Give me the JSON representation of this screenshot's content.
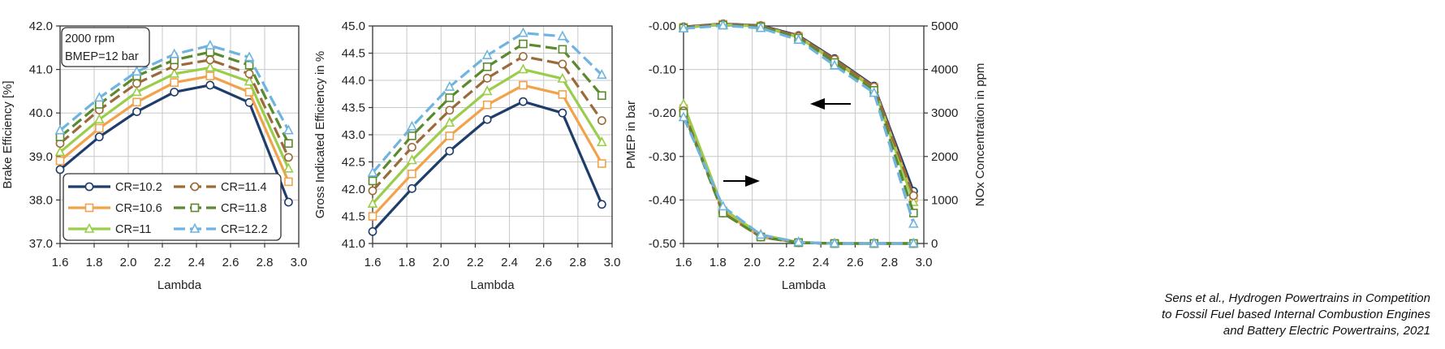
{
  "citation": {
    "line1": "Sens et al., Hydrogen Powertrains in Competition",
    "line2": "to Fossil Fuel based Internal Combustion Engines",
    "line3": "and Battery Electric Powertrains, 2021"
  },
  "colors": {
    "CR=10.2": "#1f3d6b",
    "CR=10.6": "#f2a24a",
    "CR=11": "#9acd4a",
    "CR=11.4": "#9c6a3a",
    "CR=11.8": "#5a8a2c",
    "CR=12.2": "#6fb4df"
  },
  "chart_data": [
    {
      "type": "line",
      "title": "",
      "xlabel": "Lambda",
      "ylabel": "Brake Efficiency [%]",
      "xlim": [
        1.6,
        3.0
      ],
      "ylim": [
        37.0,
        42.0
      ],
      "xticks": [
        "1.6",
        "1.8",
        "2.0",
        "2.2",
        "2.4",
        "2.6",
        "2.8",
        "3.0"
      ],
      "yticks": [
        "37.0",
        "38.0",
        "39.0",
        "40.0",
        "41.0",
        "42.0"
      ],
      "grid": true,
      "annotation_box": [
        "2000 rpm",
        "BMEP=12 bar"
      ],
      "legend_position": "bottom",
      "x": [
        1.6,
        1.83,
        2.05,
        2.27,
        2.48,
        2.71,
        2.94
      ],
      "series": [
        {
          "name": "CR=10.2",
          "values": [
            38.7,
            39.45,
            40.03,
            40.48,
            40.64,
            40.24,
            37.95
          ]
        },
        {
          "name": "CR=10.6",
          "values": [
            38.9,
            39.65,
            40.25,
            40.7,
            40.85,
            40.48,
            38.42
          ]
        },
        {
          "name": "CR=11",
          "values": [
            39.1,
            39.85,
            40.48,
            40.9,
            41.04,
            40.72,
            38.72
          ]
        },
        {
          "name": "CR=11.4",
          "values": [
            39.3,
            40.07,
            40.68,
            41.08,
            41.22,
            40.9,
            38.98
          ]
        },
        {
          "name": "CR=11.8",
          "values": [
            39.45,
            40.2,
            40.85,
            41.22,
            41.4,
            41.1,
            39.3
          ]
        },
        {
          "name": "CR=12.2",
          "values": [
            39.6,
            40.35,
            40.95,
            41.35,
            41.55,
            41.28,
            39.6
          ]
        }
      ]
    },
    {
      "type": "line",
      "title": "",
      "xlabel": "Lambda",
      "ylabel": "Gross Indicated Efficiency in %",
      "xlim": [
        1.6,
        3.0
      ],
      "ylim": [
        41.0,
        45.0
      ],
      "xticks": [
        "1.6",
        "1.8",
        "2.0",
        "2.2",
        "2.4",
        "2.6",
        "2.8",
        "3.0"
      ],
      "yticks": [
        "41.0",
        "41.5",
        "42.0",
        "42.5",
        "43.0",
        "43.5",
        "44.0",
        "44.5",
        "45.0"
      ],
      "grid": true,
      "x": [
        1.6,
        1.83,
        2.05,
        2.27,
        2.48,
        2.71,
        2.94
      ],
      "series": [
        {
          "name": "CR=10.2",
          "values": [
            41.22,
            42.01,
            42.7,
            43.28,
            43.61,
            43.4,
            41.72
          ]
        },
        {
          "name": "CR=10.6",
          "values": [
            41.5,
            42.28,
            42.98,
            43.55,
            43.91,
            43.74,
            42.47
          ]
        },
        {
          "name": "CR=11",
          "values": [
            41.73,
            42.53,
            43.22,
            43.8,
            44.2,
            44.03,
            42.86
          ]
        },
        {
          "name": "CR=11.4",
          "values": [
            41.97,
            42.77,
            43.45,
            44.04,
            44.44,
            44.3,
            43.26
          ]
        },
        {
          "name": "CR=11.8",
          "values": [
            42.15,
            42.98,
            43.68,
            44.25,
            44.67,
            44.57,
            43.72
          ]
        },
        {
          "name": "CR=12.2",
          "values": [
            42.3,
            43.15,
            43.88,
            44.46,
            44.87,
            44.81,
            44.1
          ]
        }
      ]
    },
    {
      "type": "line",
      "title": "",
      "xlabel": "Lambda",
      "ylabel": "PMEP in bar",
      "ylabel_right": "NOx Concentration in ppm",
      "xlim": [
        1.6,
        3.0
      ],
      "ylim": [
        -0.5,
        0.0
      ],
      "ylim_right": [
        0,
        5000
      ],
      "xticks": [
        "1.6",
        "1.8",
        "2.0",
        "2.2",
        "2.4",
        "2.6",
        "2.8",
        "3.0"
      ],
      "yticks": [
        "-0.50",
        "-0.40",
        "-0.30",
        "-0.20",
        "-0.10",
        "-0.00"
      ],
      "yticks_right": [
        "0",
        "1000",
        "2000",
        "3000",
        "4000",
        "5000"
      ],
      "grid": true,
      "arrows": [
        {
          "points_to": "left axis",
          "direction": "left"
        },
        {
          "points_to": "right axis",
          "direction": "right"
        }
      ],
      "x": [
        1.6,
        1.83,
        2.05,
        2.27,
        2.48,
        2.71,
        2.94
      ],
      "pmep_series": [
        {
          "name": "CR=10.2",
          "values": [
            -0.195,
            -0.425,
            -0.485,
            -0.498,
            -0.5,
            -0.5,
            -0.5
          ]
        },
        {
          "name": "CR=10.6",
          "values": [
            -0.19,
            -0.425,
            -0.485,
            -0.498,
            -0.5,
            -0.5,
            -0.5
          ]
        },
        {
          "name": "CR=11",
          "values": [
            -0.18,
            -0.42,
            -0.48,
            -0.497,
            -0.5,
            -0.5,
            -0.5
          ]
        },
        {
          "name": "CR=11.4",
          "values": [
            -0.195,
            -0.43,
            -0.485,
            -0.498,
            -0.5,
            -0.5,
            -0.5
          ]
        },
        {
          "name": "CR=11.8",
          "values": [
            -0.2,
            -0.43,
            -0.485,
            -0.498,
            -0.5,
            -0.5,
            -0.5
          ]
        },
        {
          "name": "CR=12.2",
          "values": [
            -0.21,
            -0.415,
            -0.48,
            -0.497,
            -0.5,
            -0.5,
            -0.5
          ]
        }
      ],
      "nox_series": [
        {
          "name": "CR=10.2",
          "values": [
            4980,
            5050,
            5010,
            4780,
            4250,
            3620,
            1200
          ]
        },
        {
          "name": "CR=10.6",
          "values": [
            4970,
            5040,
            5000,
            4760,
            4220,
            3590,
            1050
          ]
        },
        {
          "name": "CR=11",
          "values": [
            4960,
            5030,
            4990,
            4740,
            4190,
            3560,
            950
          ]
        },
        {
          "name": "CR=11.4",
          "values": [
            4970,
            5040,
            5000,
            4760,
            4230,
            3600,
            1100
          ]
        },
        {
          "name": "CR=11.8",
          "values": [
            4950,
            5020,
            4980,
            4720,
            4160,
            3520,
            700
          ]
        },
        {
          "name": "CR=12.2",
          "values": [
            4940,
            5010,
            4950,
            4680,
            4090,
            3460,
            450
          ]
        }
      ]
    }
  ]
}
